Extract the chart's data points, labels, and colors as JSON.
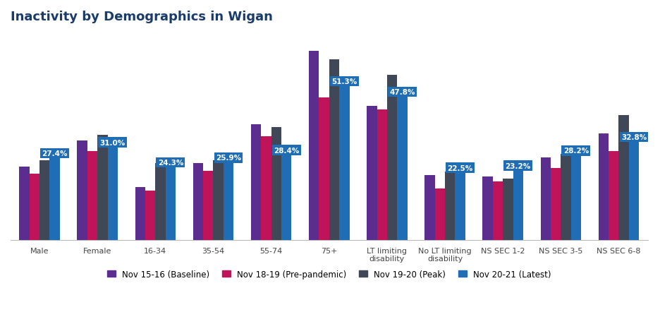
{
  "title": "Inactivity by Demographics in Wigan",
  "categories": [
    "Male",
    "Female",
    "16-34",
    "35-54",
    "55-74",
    "75+",
    "LT limiting\ndisability",
    "No LT limiting\ndisability",
    "NS SEC 1-2",
    "NS SEC 3-5",
    "NS SEC 6-8"
  ],
  "series": [
    {
      "name": "Nov 15-16 (Baseline)",
      "color": "#5b2d8e",
      "values": [
        24.5,
        33.0,
        17.5,
        25.5,
        38.5,
        63.0,
        44.5,
        21.5,
        21.0,
        27.5,
        35.5
      ]
    },
    {
      "name": "Nov 18-19 (Pre-pandemic)",
      "color": "#c0145a",
      "values": [
        22.0,
        29.5,
        16.5,
        23.0,
        34.5,
        47.5,
        43.5,
        17.0,
        19.5,
        24.0,
        29.5
      ]
    },
    {
      "name": "Nov 19-20 (Peak)",
      "color": "#404756",
      "values": [
        26.5,
        35.0,
        25.5,
        26.5,
        37.5,
        60.0,
        55.0,
        22.8,
        20.5,
        28.5,
        41.5
      ]
    },
    {
      "name": "Nov 20-21 (Latest)",
      "color": "#1f6db5",
      "values": [
        27.4,
        31.0,
        24.3,
        25.9,
        28.4,
        51.3,
        47.8,
        22.5,
        23.2,
        28.2,
        32.8
      ]
    }
  ],
  "ylim": [
    0,
    70
  ],
  "background_color": "#ffffff",
  "title_color": "#1a3c6b",
  "title_fontsize": 13,
  "label_bg_color": "#1f6db5",
  "label_text_color": "#ffffff",
  "label_fontsize": 7.5
}
